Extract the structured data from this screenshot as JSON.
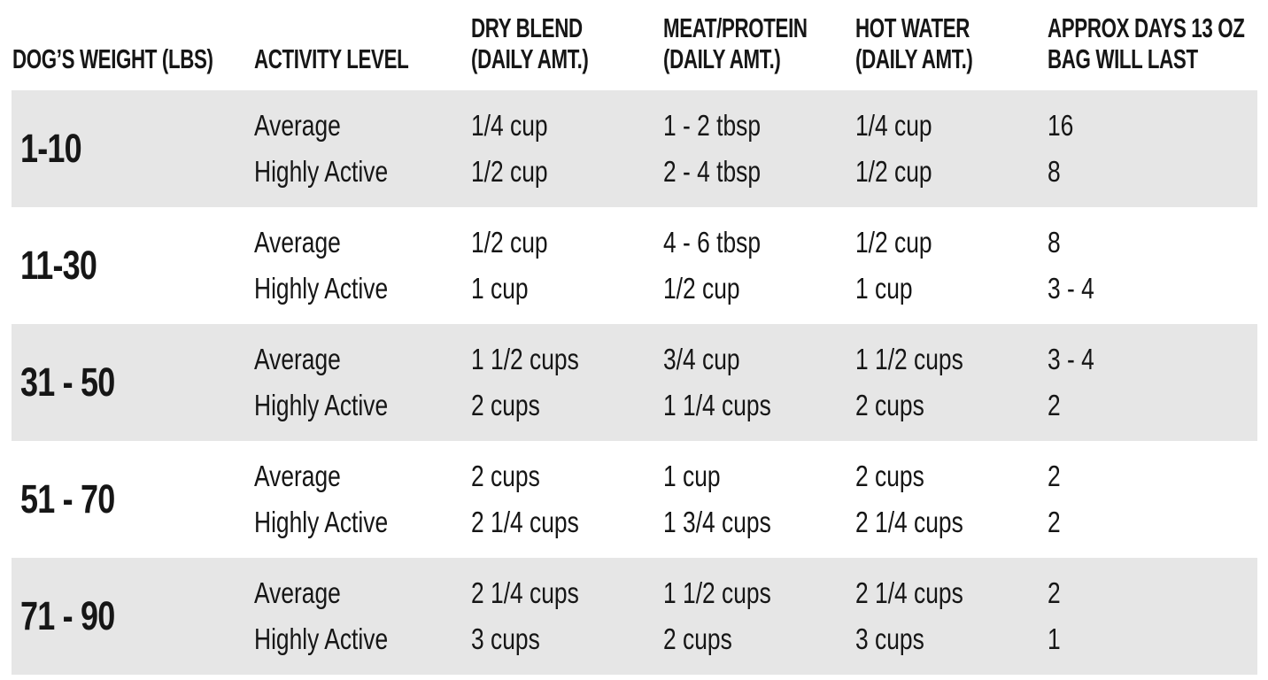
{
  "page": {
    "background_color": "#ffffff",
    "stripe_color": "#e6e6e6",
    "text_color": "#161616"
  },
  "table": {
    "columns": [
      {
        "id": "weight",
        "header_lines": [
          "DOG’S WEIGHT (LBS)"
        ]
      },
      {
        "id": "activity",
        "header_lines": [
          "ACTIVITY LEVEL"
        ]
      },
      {
        "id": "dry_blend",
        "header_lines": [
          "DRY BLEND",
          "(DAILY AMT.)"
        ]
      },
      {
        "id": "meat_protein",
        "header_lines": [
          "MEAT/PROTEIN",
          "(DAILY AMT.)"
        ]
      },
      {
        "id": "hot_water",
        "header_lines": [
          "HOT WATER",
          "(DAILY AMT.)"
        ]
      },
      {
        "id": "days",
        "header_lines": [
          "APPROX DAYS 13 OZ",
          "BAG WILL LAST"
        ]
      }
    ],
    "rows": [
      {
        "weight": "1-10",
        "entries": [
          {
            "activity": "Average",
            "dry_blend": "1/4 cup",
            "meat_protein": "1 - 2 tbsp",
            "hot_water": "1/4 cup",
            "days": "16"
          },
          {
            "activity": "Highly Active",
            "dry_blend": "1/2 cup",
            "meat_protein": "2 - 4 tbsp",
            "hot_water": "1/2 cup",
            "days": "8"
          }
        ]
      },
      {
        "weight": "11-30",
        "entries": [
          {
            "activity": "Average",
            "dry_blend": "1/2 cup",
            "meat_protein": "4 - 6 tbsp",
            "hot_water": "1/2 cup",
            "days": "8"
          },
          {
            "activity": "Highly Active",
            "dry_blend": "1 cup",
            "meat_protein": "1/2 cup",
            "hot_water": "1 cup",
            "days": "3 - 4"
          }
        ]
      },
      {
        "weight": "31 - 50",
        "entries": [
          {
            "activity": "Average",
            "dry_blend": "1 1/2 cups",
            "meat_protein": "3/4 cup",
            "hot_water": "1 1/2 cups",
            "days": "3 - 4"
          },
          {
            "activity": "Highly Active",
            "dry_blend": "2 cups",
            "meat_protein": "1 1/4 cups",
            "hot_water": "2 cups",
            "days": "2"
          }
        ]
      },
      {
        "weight": "51 - 70",
        "entries": [
          {
            "activity": "Average",
            "dry_blend": "2 cups",
            "meat_protein": "1 cup",
            "hot_water": "2 cups",
            "days": "2"
          },
          {
            "activity": "Highly Active",
            "dry_blend": "2 1/4 cups",
            "meat_protein": "1 3/4 cups",
            "hot_water": "2 1/4 cups",
            "days": "2"
          }
        ]
      },
      {
        "weight": "71 - 90",
        "entries": [
          {
            "activity": "Average",
            "dry_blend": "2 1/4 cups",
            "meat_protein": "1 1/2 cups",
            "hot_water": "2 1/4 cups",
            "days": "2"
          },
          {
            "activity": "Highly Active",
            "dry_blend": "3 cups",
            "meat_protein": "2 cups",
            "hot_water": "3 cups",
            "days": "1"
          }
        ]
      }
    ]
  }
}
